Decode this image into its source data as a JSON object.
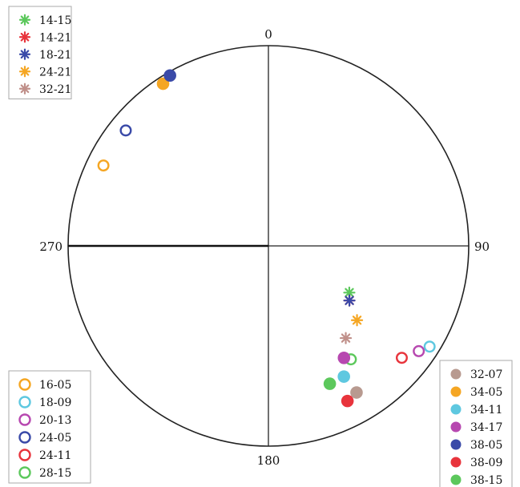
{
  "chart_data": {
    "type": "scatter",
    "projection": "stereonet (azimuth/plunge)",
    "azimuth_labels": [
      "0",
      "90",
      "180",
      "270"
    ],
    "grid": false,
    "legends": {
      "top-left": {
        "marker": "asterisk",
        "entries": [
          {
            "name": "14-15",
            "color": "#5cc85c"
          },
          {
            "name": "14-21",
            "color": "#e8343c"
          },
          {
            "name": "18-21",
            "color": "#3a4aa8"
          },
          {
            "name": "24-21",
            "color": "#f5a623"
          },
          {
            "name": "32-21",
            "color": "#c0908a"
          }
        ]
      },
      "bottom-left": {
        "marker": "open-circle",
        "entries": [
          {
            "name": "16-05",
            "color": "#f5a623"
          },
          {
            "name": "18-09",
            "color": "#5ec8e0"
          },
          {
            "name": "20-13",
            "color": "#b748b0"
          },
          {
            "name": "24-05",
            "color": "#3a4aa8"
          },
          {
            "name": "24-11",
            "color": "#e8343c"
          },
          {
            "name": "28-15",
            "color": "#5cc85c"
          }
        ]
      },
      "bottom-right": {
        "marker": "filled-circle",
        "entries": [
          {
            "name": "32-07",
            "color": "#b89a90"
          },
          {
            "name": "34-05",
            "color": "#f5a623"
          },
          {
            "name": "34-11",
            "color": "#5ec8e0"
          },
          {
            "name": "34-17",
            "color": "#b748b0"
          },
          {
            "name": "38-05",
            "color": "#3a4aa8"
          },
          {
            "name": "38-09",
            "color": "#e8343c"
          },
          {
            "name": "38-15",
            "color": "#5cc85c"
          }
        ]
      }
    },
    "points": [
      {
        "series": "14-15",
        "marker": "asterisk",
        "azimuth": 120,
        "plunge": 40
      },
      {
        "series": "14-21",
        "marker": "asterisk",
        "azimuth": 124,
        "plunge": 38
      },
      {
        "series": "18-21",
        "marker": "asterisk",
        "azimuth": 124,
        "plunge": 38
      },
      {
        "series": "24-21",
        "marker": "asterisk",
        "azimuth": 130,
        "plunge": 30
      },
      {
        "series": "32-21",
        "marker": "asterisk",
        "azimuth": 140,
        "plunge": 28
      },
      {
        "series": "16-05",
        "marker": "open-circle",
        "azimuth": 296,
        "plunge": 5
      },
      {
        "series": "18-09",
        "marker": "open-circle",
        "azimuth": 122,
        "plunge": 3
      },
      {
        "series": "20-13",
        "marker": "open-circle",
        "azimuth": 125,
        "plunge": 5
      },
      {
        "series": "24-05",
        "marker": "open-circle",
        "azimuth": 309,
        "plunge": 5
      },
      {
        "series": "24-11",
        "marker": "open-circle",
        "azimuth": 130,
        "plunge": 8
      },
      {
        "series": "28-15",
        "marker": "open-circle",
        "azimuth": 144,
        "plunge": 20
      },
      {
        "series": "32-07",
        "marker": "filled-circle",
        "azimuth": 149,
        "plunge": 9
      },
      {
        "series": "34-05",
        "marker": "filled-circle",
        "azimuth": 327,
        "plunge": 2
      },
      {
        "series": "34-11",
        "marker": "filled-circle",
        "azimuth": 150,
        "plunge": 16
      },
      {
        "series": "34-17",
        "marker": "filled-circle",
        "azimuth": 146,
        "plunge": 22
      },
      {
        "series": "38-05",
        "marker": "filled-circle",
        "azimuth": 330,
        "plunge": 1
      },
      {
        "series": "38-09",
        "marker": "filled-circle",
        "azimuth": 153,
        "plunge": 8
      },
      {
        "series": "38-15",
        "marker": "filled-circle",
        "azimuth": 156,
        "plunge": 16
      }
    ]
  }
}
